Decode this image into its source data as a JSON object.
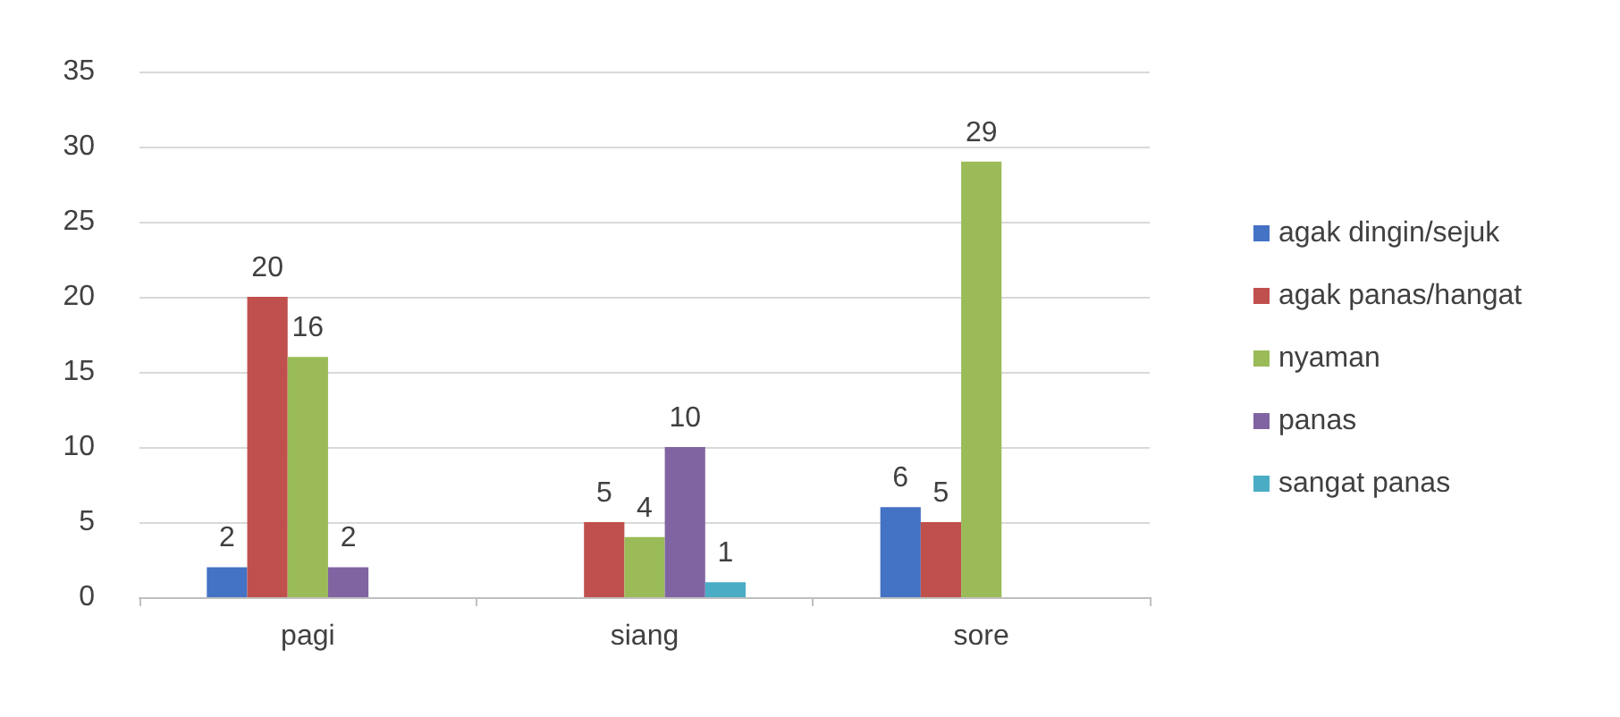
{
  "chart_data": {
    "type": "bar",
    "categories": [
      "pagi",
      "siang",
      "sore"
    ],
    "series": [
      {
        "name": "agak dingin/sejuk",
        "color": "#4472c4",
        "values": [
          2,
          null,
          6
        ]
      },
      {
        "name": "agak panas/hangat",
        "color": "#c0504d",
        "values": [
          20,
          5,
          5
        ]
      },
      {
        "name": "nyaman",
        "color": "#9bbb59",
        "values": [
          16,
          4,
          29
        ]
      },
      {
        "name": "panas",
        "color": "#8064a2",
        "values": [
          2,
          10,
          null
        ]
      },
      {
        "name": "sangat panas",
        "color": "#4bacc6",
        "values": [
          null,
          1,
          null
        ]
      }
    ],
    "ylim": [
      0,
      35
    ],
    "yticks": [
      0,
      5,
      10,
      15,
      20,
      25,
      30,
      35
    ],
    "grid": "y",
    "legend": "right",
    "data_labels": true
  }
}
